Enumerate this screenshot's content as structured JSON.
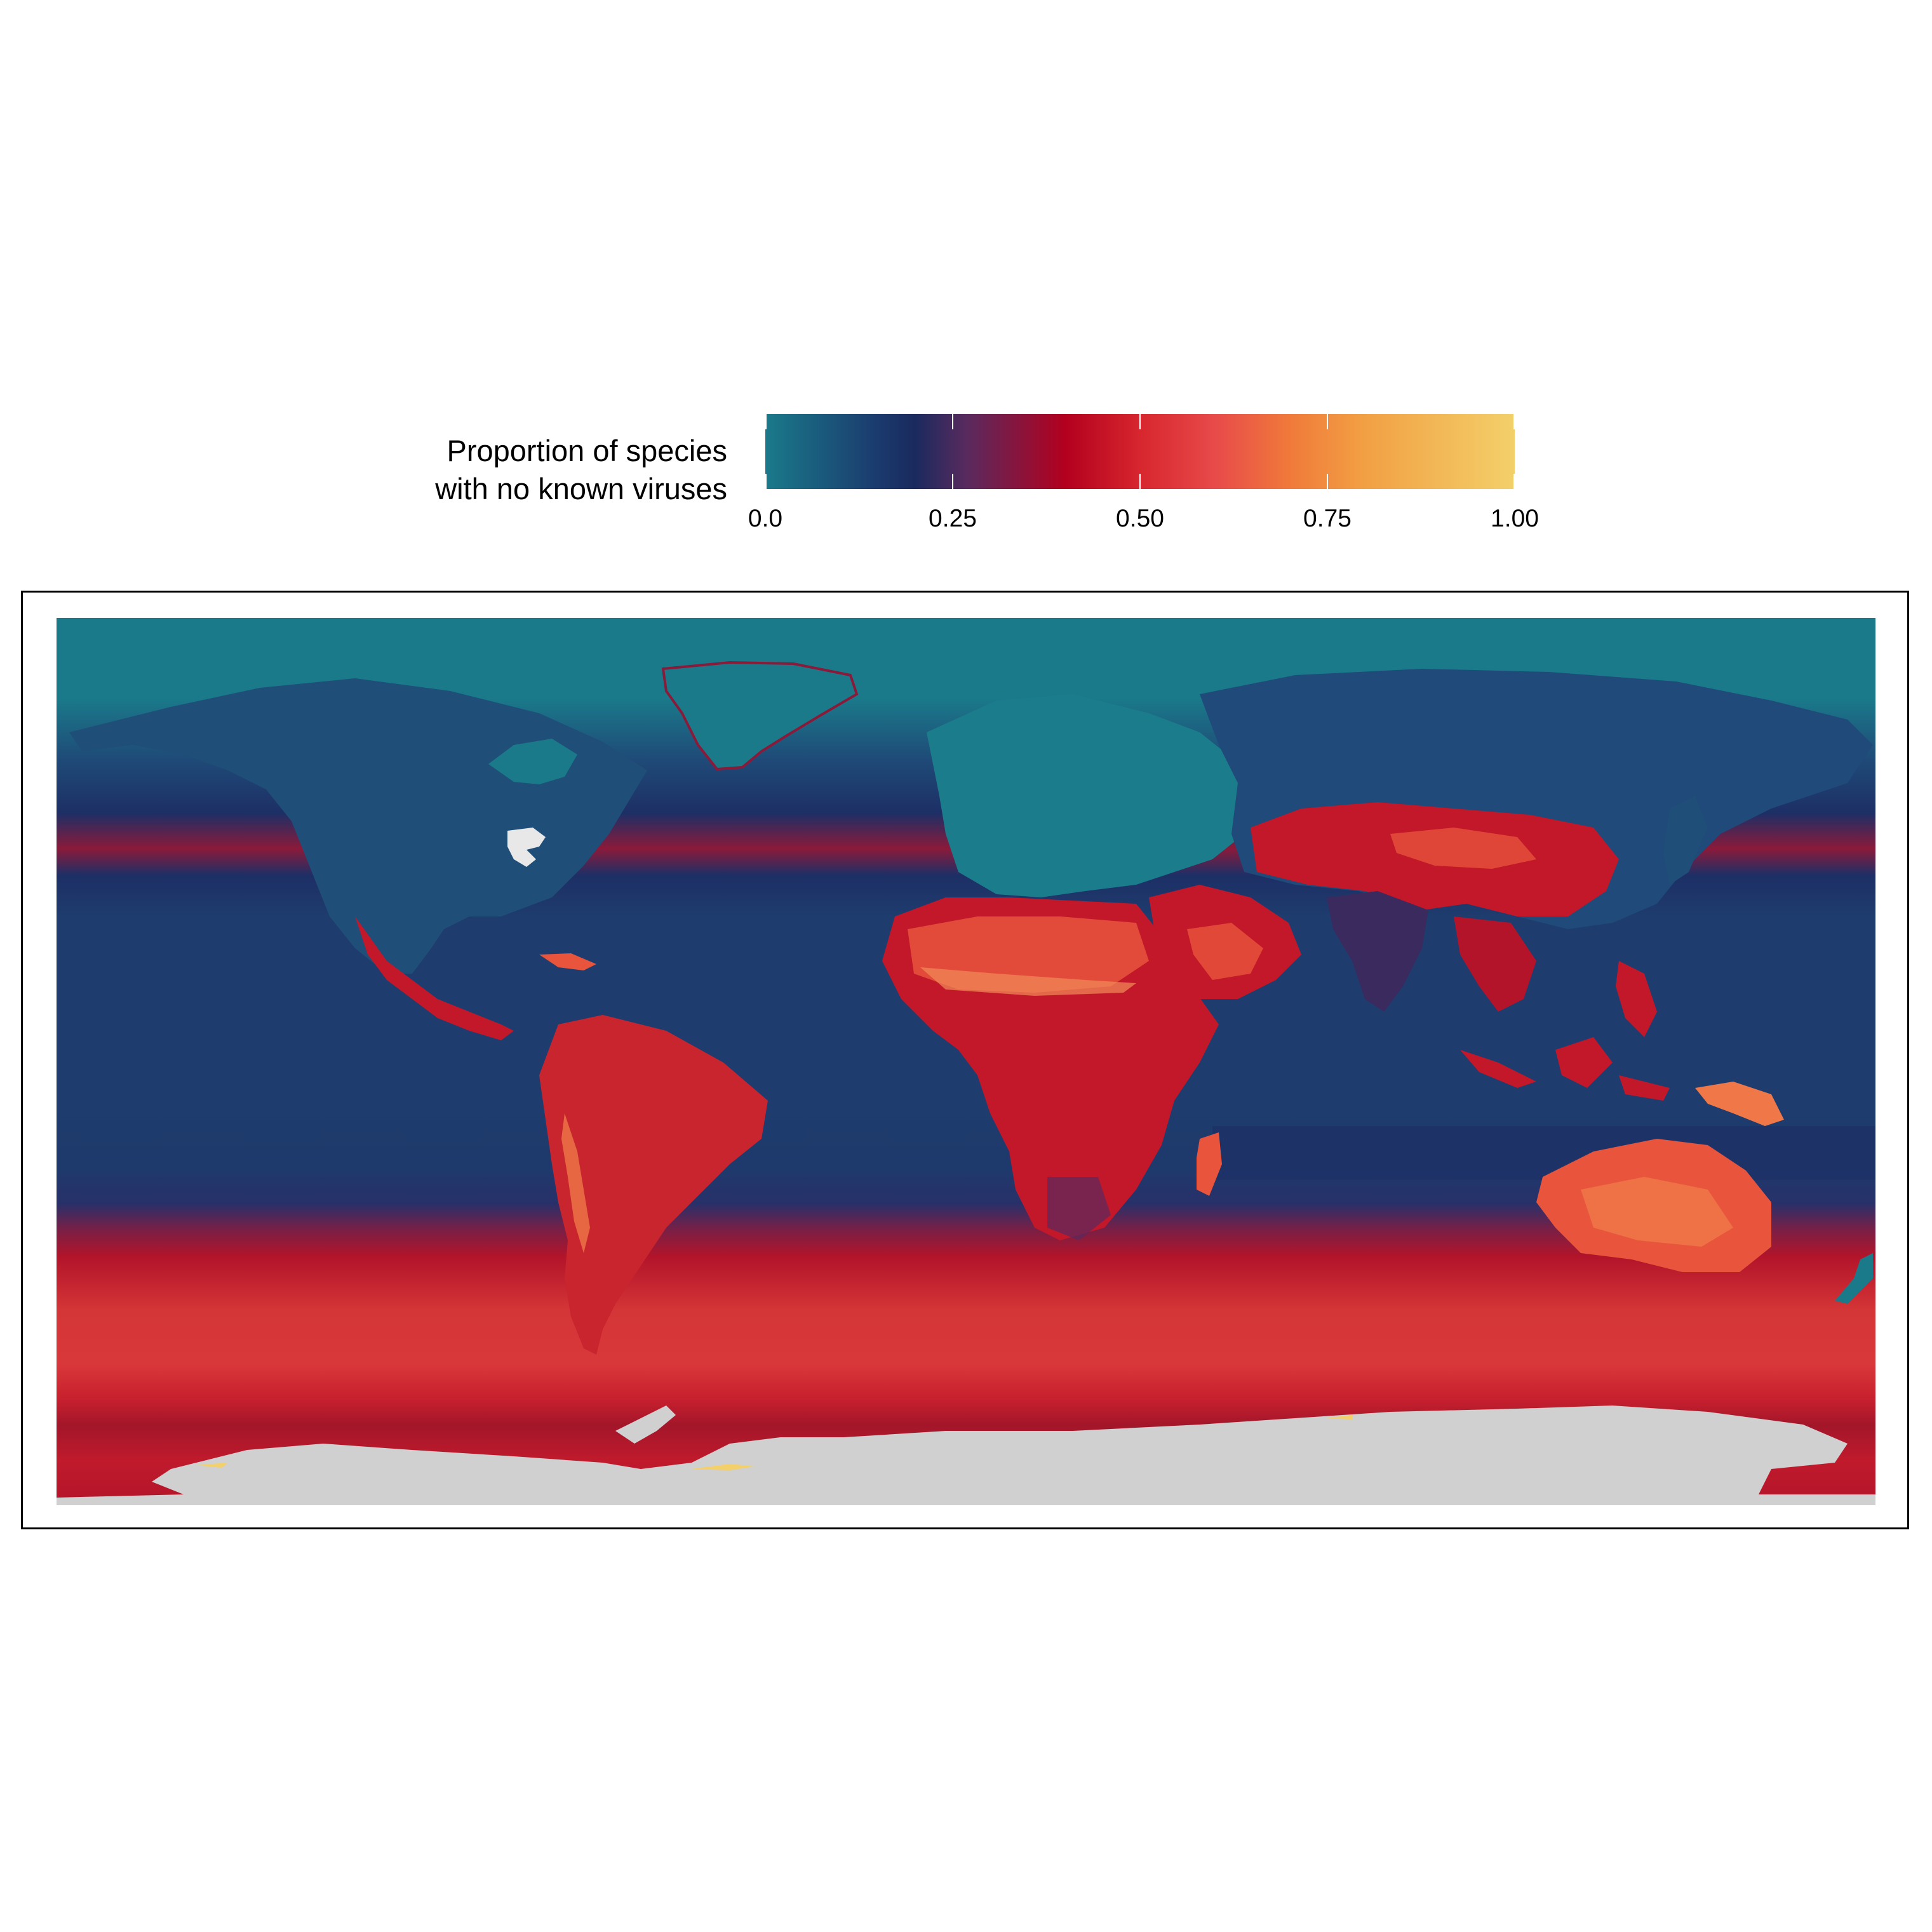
{
  "legend": {
    "title_line1": "Proportion of species",
    "title_line2": "with no known viruses",
    "ticks": [
      "0.0",
      "0.25",
      "0.50",
      "0.75",
      "1.00"
    ],
    "tick_values": [
      0.0,
      0.25,
      0.5,
      0.75,
      1.0
    ],
    "gradient_colors": [
      "#1a7a8a",
      "#1b3a6e",
      "#1a2a5e",
      "#5a2a5e",
      "#b3001e",
      "#d7262e",
      "#e84a4a",
      "#f07a3a",
      "#f2a044",
      "#f3d06a"
    ],
    "gradient_stops": [
      0.0,
      0.15,
      0.2,
      0.27,
      0.4,
      0.5,
      0.6,
      0.7,
      0.8,
      1.0
    ]
  },
  "map": {
    "colors": {
      "ocean_arctic": "#1a7a8a",
      "ocean_mid": "#1e3d6e",
      "ocean_dark": "#1d2f66",
      "southern_red": "#c8202e",
      "southern_bright": "#d9383b",
      "southern_dark": "#a3162a",
      "land_north": "#1f4f78",
      "land_europe": "#1b7d8c",
      "land_red": "#c2182a",
      "land_orange": "#e8553c",
      "land_peach": "#f07848",
      "no_data": "#d0d0d0",
      "lakes": "#e8e8e8",
      "nz": "#1a7a8a"
    }
  }
}
